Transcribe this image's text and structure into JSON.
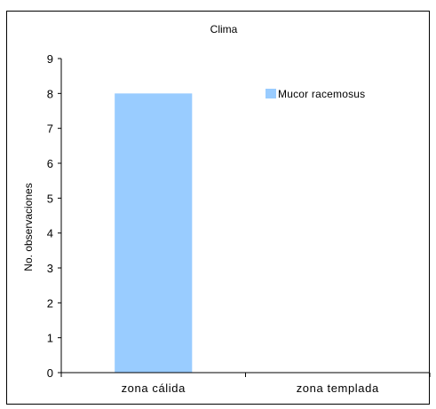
{
  "chart_data": {
    "type": "bar",
    "title": "Clima",
    "xlabel": "",
    "ylabel": "No. observaciones",
    "categories": [
      "zona cálida",
      "zona templada"
    ],
    "series": [
      {
        "name": "Mucor racemosus",
        "values": [
          8,
          0
        ],
        "color": "#99CCFF"
      }
    ],
    "ylim": [
      0,
      9
    ],
    "yticks": [
      "0",
      "1",
      "2",
      "3",
      "4",
      "5",
      "6",
      "7",
      "8",
      "9"
    ],
    "grid": false,
    "legend_position": "top-right"
  }
}
